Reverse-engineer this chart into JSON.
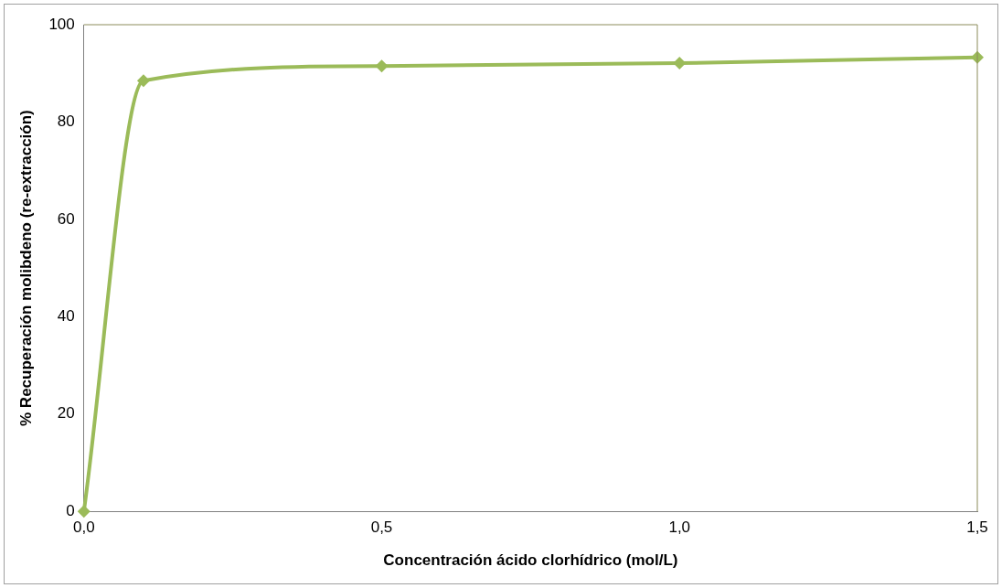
{
  "chart_data": {
    "type": "scatter",
    "xlabel": "Concentración ácido clorhídrico (mol/L)",
    "ylabel": "% Recuperación molibdeno (re-extracción)",
    "x": [
      0,
      0.1,
      0.5,
      1.0,
      1.5
    ],
    "series": [
      {
        "type": "line",
        "color": "#9bbb59",
        "values": [
          0,
          88.5,
          91.5,
          92.1,
          93.3
        ]
      }
    ],
    "xlim": [
      0,
      1.5
    ],
    "xticks": [
      {
        "value": 0,
        "label": "0,0"
      },
      {
        "value": 0.5,
        "label": "0,5"
      },
      {
        "value": 1,
        "label": "1,0"
      },
      {
        "value": 1.5,
        "label": "1,5"
      }
    ],
    "ylim": [
      0,
      100
    ],
    "yticks": [
      0,
      20,
      40,
      60,
      80,
      100
    ],
    "grid": false,
    "legend": false,
    "marker": "diamond",
    "line_style": "solid"
  }
}
